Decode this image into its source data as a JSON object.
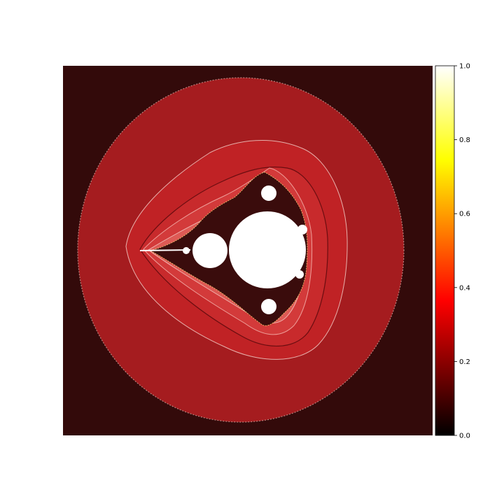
{
  "chart_data": {
    "type": "heatmap",
    "subject": "Mandelbrot set escape-time rendering with hillshade",
    "title": "",
    "xlabel": "",
    "ylabel": "",
    "axes_visible": false,
    "colormap": "hot",
    "background_value": 0.05,
    "outer_band_value": 0.28,
    "inner_band_value": 0.3,
    "set_value": 1.0,
    "colorbar": {
      "position": "right",
      "range": [
        0.0,
        1.0
      ],
      "ticks": [
        {
          "value": 0.0,
          "label": "0.0"
        },
        {
          "value": 0.2,
          "label": "0.2"
        },
        {
          "value": 0.4,
          "label": "0.4"
        },
        {
          "value": 0.6,
          "label": "0.6"
        },
        {
          "value": 0.8,
          "label": "0.8"
        },
        {
          "value": 1.0,
          "label": "1.0"
        }
      ]
    },
    "colors": {
      "background": "#330a0a",
      "outer_band": "#a51c1f",
      "inner_band": "#c02225",
      "light_band": "#d94c48",
      "set": "#ffffff"
    }
  }
}
